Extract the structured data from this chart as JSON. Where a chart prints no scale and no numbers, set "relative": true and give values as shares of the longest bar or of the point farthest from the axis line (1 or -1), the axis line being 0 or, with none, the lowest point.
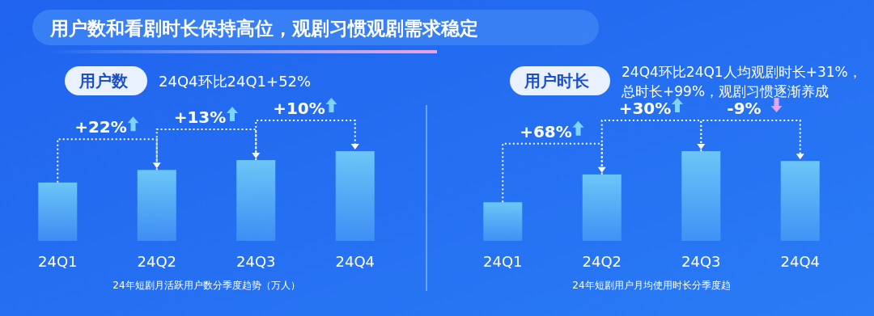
{
  "chart_data": [
    {
      "type": "bar",
      "relative": true,
      "title": "用户数",
      "subtitle": "24Q4环比24Q1+52%",
      "xlabel": "24年短剧月活跃用户数分季度趋势（万人）",
      "categories": [
        "24Q1",
        "24Q2",
        "24Q3",
        "24Q4"
      ],
      "values": [
        0.65,
        0.79,
        0.9,
        1
      ],
      "color": "#6cc6f7",
      "annotations": [
        "用户数和看剧时长保持高位，观剧习惯观剧需求稳定",
        "+22%",
        "+13%",
        "+10%"
      ]
    },
    {
      "type": "bar",
      "relative": true,
      "title": "用户时长",
      "subtitle": "24Q4环比24Q1人均观剧时长+31%，总时长+99%，观剧习惯逐渐养成",
      "xlabel": "24年短剧用户月均使用时长分季度趋",
      "categories": [
        "24Q1",
        "24Q2",
        "24Q3",
        "24Q4"
      ],
      "values": [
        0.43,
        0.74,
        1,
        0.89
      ],
      "color": "#6cc6f7",
      "annotations": [
        "+68%",
        "+30%",
        "-9%"
      ]
    }
  ]
}
